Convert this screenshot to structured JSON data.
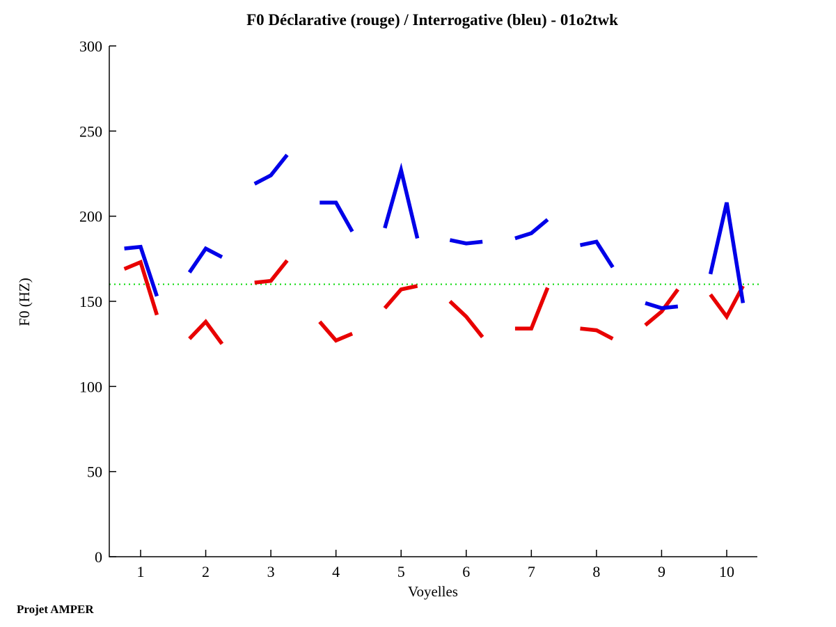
{
  "footer": {
    "label": "Projet AMPER"
  },
  "chart_data": {
    "type": "line",
    "title": "F0 Déclarative (rouge) / Interrogative (bleu) - 01o2twk",
    "xlabel": "Voyelles",
    "ylabel": "F0 (HZ)",
    "xlim": [
      0.5,
      10.5
    ],
    "ylim": [
      0,
      300
    ],
    "xticks": [
      1,
      2,
      3,
      4,
      5,
      6,
      7,
      8,
      9,
      10
    ],
    "yticks": [
      0,
      50,
      100,
      150,
      200,
      250,
      300
    ],
    "grid": false,
    "legend_position": "encoded-in-title",
    "point_offsets": [
      -0.25,
      0,
      0.25
    ],
    "reference_line": {
      "y": 160,
      "style": "dotted",
      "color": "#00d800"
    },
    "series": [
      {
        "name": "Déclarative (rouge)",
        "color": "#e80000",
        "segments": [
          [
            169,
            173,
            142
          ],
          [
            128,
            138,
            125
          ],
          [
            161,
            162,
            174
          ],
          [
            138,
            127,
            131
          ],
          [
            146,
            157,
            159
          ],
          [
            150,
            141,
            129
          ],
          [
            134,
            134,
            158
          ],
          [
            134,
            133,
            128
          ],
          [
            136,
            144,
            157
          ],
          [
            154,
            141,
            159
          ]
        ]
      },
      {
        "name": "Interrogative (bleu)",
        "color": "#0000e8",
        "segments": [
          [
            181,
            182,
            153
          ],
          [
            167,
            181,
            176
          ],
          [
            219,
            224,
            236
          ],
          [
            208,
            208,
            191
          ],
          [
            193,
            227,
            187
          ],
          [
            186,
            184,
            185
          ],
          [
            187,
            190,
            198
          ],
          [
            183,
            185,
            170
          ],
          [
            149,
            146,
            147
          ],
          [
            166,
            208,
            149
          ]
        ]
      }
    ]
  }
}
